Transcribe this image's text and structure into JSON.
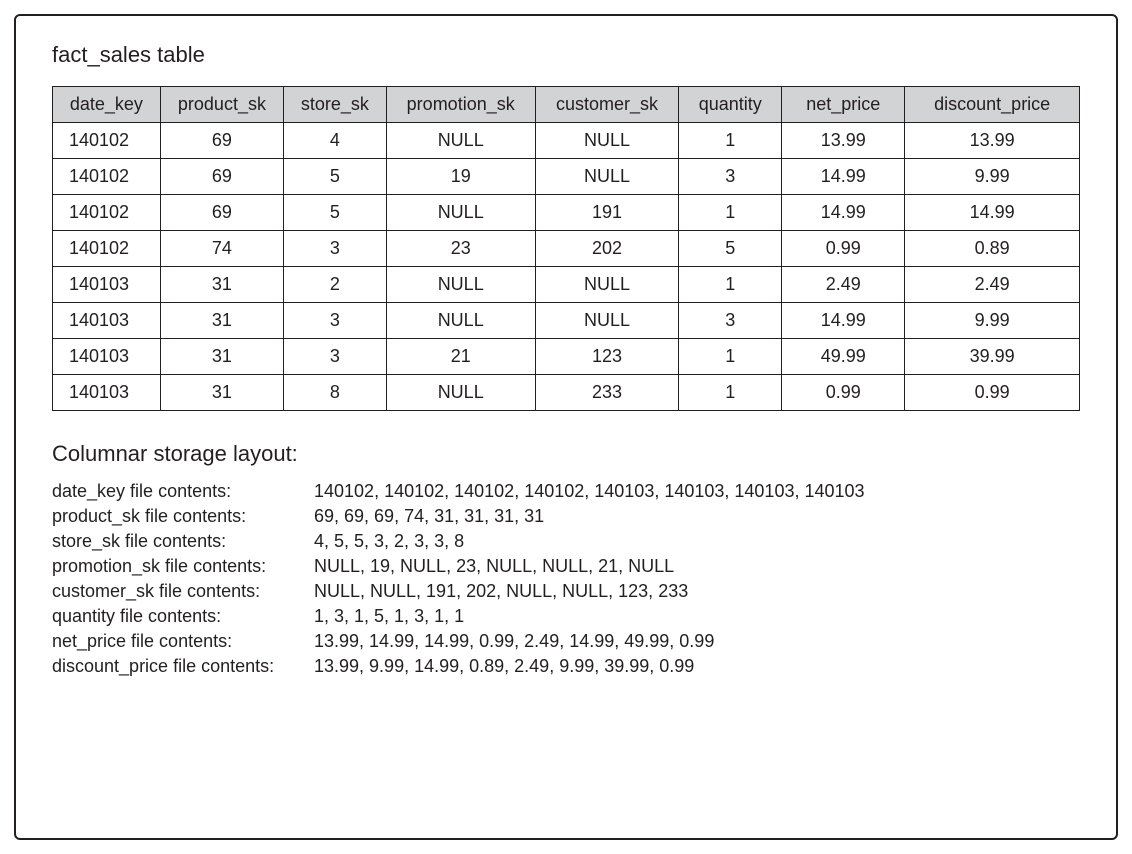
{
  "title": "fact_sales table",
  "table": {
    "header_bg": "#d1d3d4",
    "border_color": "#231f20",
    "columns": [
      "date_key",
      "product_sk",
      "store_sk",
      "promotion_sk",
      "customer_sk",
      "quantity",
      "net_price",
      "discount_price"
    ],
    "col_widths_pct": [
      10.5,
      12,
      10,
      14.5,
      14,
      10,
      12,
      17
    ],
    "left_align_cols": [
      0
    ],
    "rows": [
      [
        "140102",
        "69",
        "4",
        "NULL",
        "NULL",
        "1",
        "13.99",
        "13.99"
      ],
      [
        "140102",
        "69",
        "5",
        "19",
        "NULL",
        "3",
        "14.99",
        "9.99"
      ],
      [
        "140102",
        "69",
        "5",
        "NULL",
        "191",
        "1",
        "14.99",
        "14.99"
      ],
      [
        "140102",
        "74",
        "3",
        "23",
        "202",
        "5",
        "0.99",
        "0.89"
      ],
      [
        "140103",
        "31",
        "2",
        "NULL",
        "NULL",
        "1",
        "2.49",
        "2.49"
      ],
      [
        "140103",
        "31",
        "3",
        "NULL",
        "NULL",
        "3",
        "14.99",
        "9.99"
      ],
      [
        "140103",
        "31",
        "3",
        "21",
        "123",
        "1",
        "49.99",
        "39.99"
      ],
      [
        "140103",
        "31",
        "8",
        "NULL",
        "233",
        "1",
        "0.99",
        "0.99"
      ]
    ]
  },
  "columnar": {
    "title": "Columnar storage layout:",
    "entries": [
      {
        "label": "date_key file contents:",
        "values": "140102, 140102, 140102, 140102, 140103, 140103, 140103, 140103"
      },
      {
        "label": "product_sk file contents:",
        "values": "69, 69, 69, 74, 31, 31, 31, 31"
      },
      {
        "label": "store_sk file contents:",
        "values": "4, 5, 5, 3, 2, 3, 3, 8"
      },
      {
        "label": "promotion_sk file contents:",
        "values": "NULL, 19, NULL, 23, NULL, NULL, 21, NULL"
      },
      {
        "label": "customer_sk file contents:",
        "values": "NULL, NULL, 191, 202, NULL, NULL, 123, 233"
      },
      {
        "label": "quantity file contents:",
        "values": "1, 3, 1, 5, 1, 3, 1, 1"
      },
      {
        "label": "net_price file contents:",
        "values": "13.99, 14.99, 14.99, 0.99, 2.49, 14.99, 49.99, 0.99"
      },
      {
        "label": "discount_price file contents:",
        "values": "13.99, 9.99, 14.99, 0.89, 2.49, 9.99, 39.99, 0.99"
      }
    ]
  },
  "style": {
    "background_color": "#ffffff",
    "frame_border_color": "#231f20",
    "text_color": "#231f20",
    "title_fontsize": 22,
    "cell_fontsize": 18,
    "columnar_fontsize": 18
  }
}
